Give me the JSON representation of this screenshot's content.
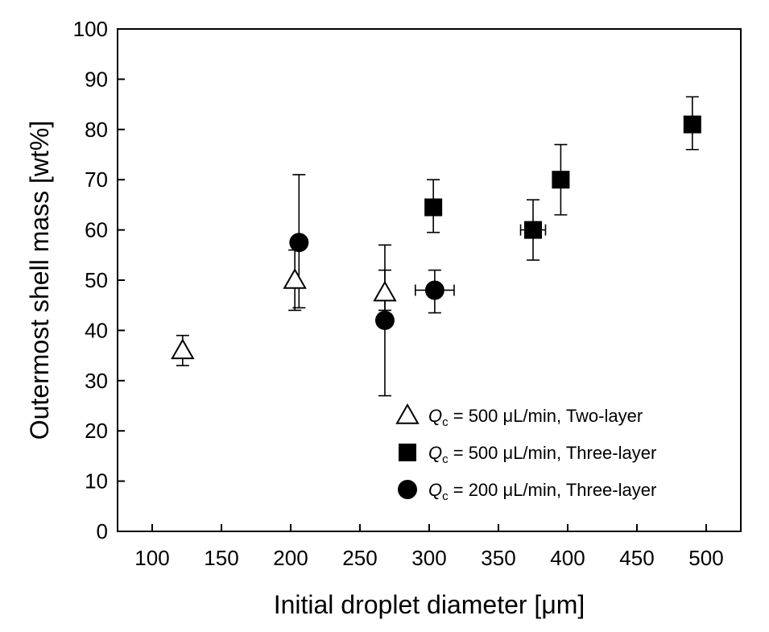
{
  "chart_data": {
    "type": "scatter",
    "xlabel": "Initial droplet diameter [μm]",
    "ylabel": "Outermost shell mass [wt%]",
    "xlim": [
      75,
      525
    ],
    "ylim": [
      0,
      100
    ],
    "x_ticks": [
      100,
      150,
      200,
      250,
      300,
      350,
      400,
      450,
      500
    ],
    "y_ticks": [
      0,
      10,
      20,
      30,
      40,
      50,
      60,
      70,
      80,
      90,
      100
    ],
    "grid": false,
    "legend_position": "bottom-right",
    "series": [
      {
        "name": "Qc = 500 μL/min, Two-layer",
        "legend_label": {
          "q": "Q",
          "sub": "c",
          "text": " = 500 μL/min, Two-layer"
        },
        "marker": "triangle-open",
        "points": [
          {
            "x": 122,
            "y": 36,
            "err_lo": 3,
            "err_hi": 3
          },
          {
            "x": 203,
            "y": 50,
            "err_lo": 6,
            "err_hi": 6
          },
          {
            "x": 268,
            "y": 47.5,
            "err_lo": 3.5,
            "err_hi": 4.5
          }
        ]
      },
      {
        "name": "Qc = 500 μL/min, Three-layer",
        "legend_label": {
          "q": "Q",
          "sub": "c",
          "text": " = 500 μL/min, Three-layer"
        },
        "marker": "square-filled",
        "points": [
          {
            "x": 303,
            "y": 64.5,
            "err_lo": 5,
            "err_hi": 5.5
          },
          {
            "x": 375,
            "y": 60,
            "err_lo": 6,
            "err_hi": 6,
            "xerr": 9
          },
          {
            "x": 395,
            "y": 70,
            "err_lo": 7,
            "err_hi": 7
          },
          {
            "x": 490,
            "y": 81,
            "err_lo": 5,
            "err_hi": 5.5
          }
        ]
      },
      {
        "name": "Qc = 200 μL/min, Three-layer",
        "legend_label": {
          "q": "Q",
          "sub": "c",
          "text": " = 200 μL/min, Three-layer"
        },
        "marker": "circle-filled",
        "points": [
          {
            "x": 206,
            "y": 57.5,
            "err_lo": 13,
            "err_hi": 13.5
          },
          {
            "x": 268,
            "y": 42,
            "err_lo": 15,
            "err_hi": 15
          },
          {
            "x": 304,
            "y": 48,
            "err_lo": 4.5,
            "err_hi": 4,
            "xerr": 14
          }
        ]
      }
    ]
  }
}
